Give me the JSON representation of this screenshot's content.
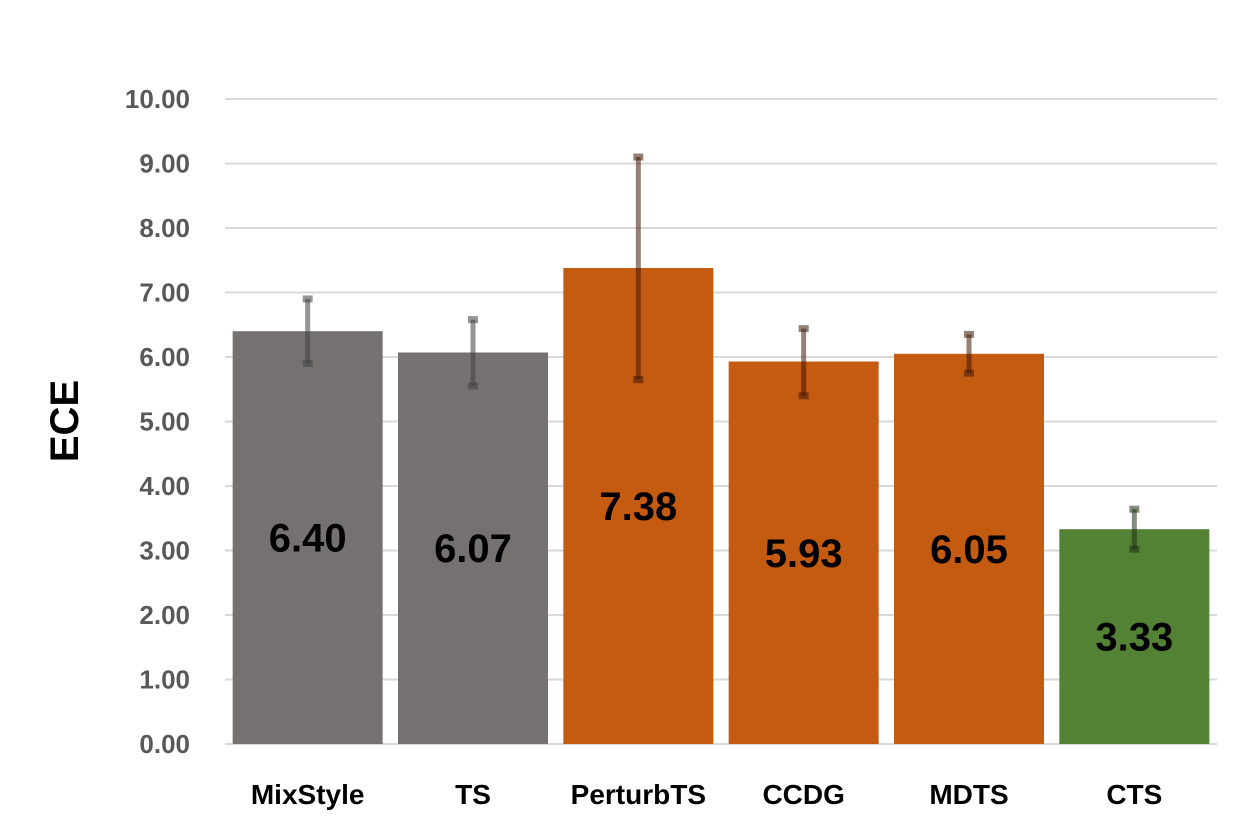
{
  "chart_data": {
    "type": "bar",
    "ylabel": "ECE",
    "xlabel": "",
    "ylim": [
      0,
      10
    ],
    "ytick_step": 1,
    "ytick_decimals": 2,
    "grid": true,
    "legend": "none",
    "categories": [
      "MixStyle",
      "TS",
      "PerturbTS",
      "CCDG",
      "MDTS",
      "CTS"
    ],
    "values": [
      6.4,
      6.07,
      7.38,
      5.93,
      6.05,
      3.33
    ],
    "value_labels": [
      "6.40",
      "6.07",
      "7.38",
      "5.93",
      "6.05",
      "3.33"
    ],
    "error_bars": [
      {
        "low": 5.9,
        "high": 6.9
      },
      {
        "low": 5.55,
        "high": 6.58
      },
      {
        "low": 5.65,
        "high": 9.1
      },
      {
        "low": 5.4,
        "high": 6.44
      },
      {
        "low": 5.75,
        "high": 6.35
      },
      {
        "low": 3.02,
        "high": 3.64
      }
    ],
    "colors": [
      "#757171",
      "#757171",
      "#c55a11",
      "#c55a11",
      "#c55a11",
      "#548235"
    ],
    "error_colors": [
      "#3f3f3f",
      "#3f3f3f",
      "#3f1a05",
      "#3f1a05",
      "#3f1a05",
      "#1e3012"
    ]
  }
}
